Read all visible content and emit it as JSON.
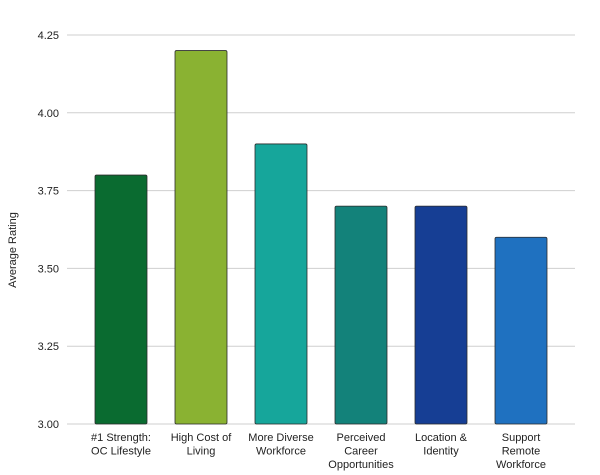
{
  "chart_data": {
    "type": "bar",
    "title": "",
    "xlabel": "",
    "ylabel": "Average Rating",
    "ylim": [
      3.0,
      4.25
    ],
    "yticks": [
      "3.00",
      "3.25",
      "3.50",
      "3.75",
      "4.00",
      "4.25"
    ],
    "grid": true,
    "categories": [
      [
        "#1 Strength:",
        "OC Lifestyle"
      ],
      [
        "High Cost of",
        "Living"
      ],
      [
        "More Diverse",
        "Workforce"
      ],
      [
        "Perceived",
        "Career",
        "Opportunities"
      ],
      [
        "Location &",
        "Identity"
      ],
      [
        "Support",
        "Remote",
        "Workforce"
      ]
    ],
    "values": [
      3.8,
      4.2,
      3.9,
      3.7,
      3.7,
      3.6
    ],
    "colors": [
      "#0a6b30",
      "#8ab232",
      "#16a69b",
      "#13827a",
      "#163e94",
      "#1f71c0"
    ]
  }
}
